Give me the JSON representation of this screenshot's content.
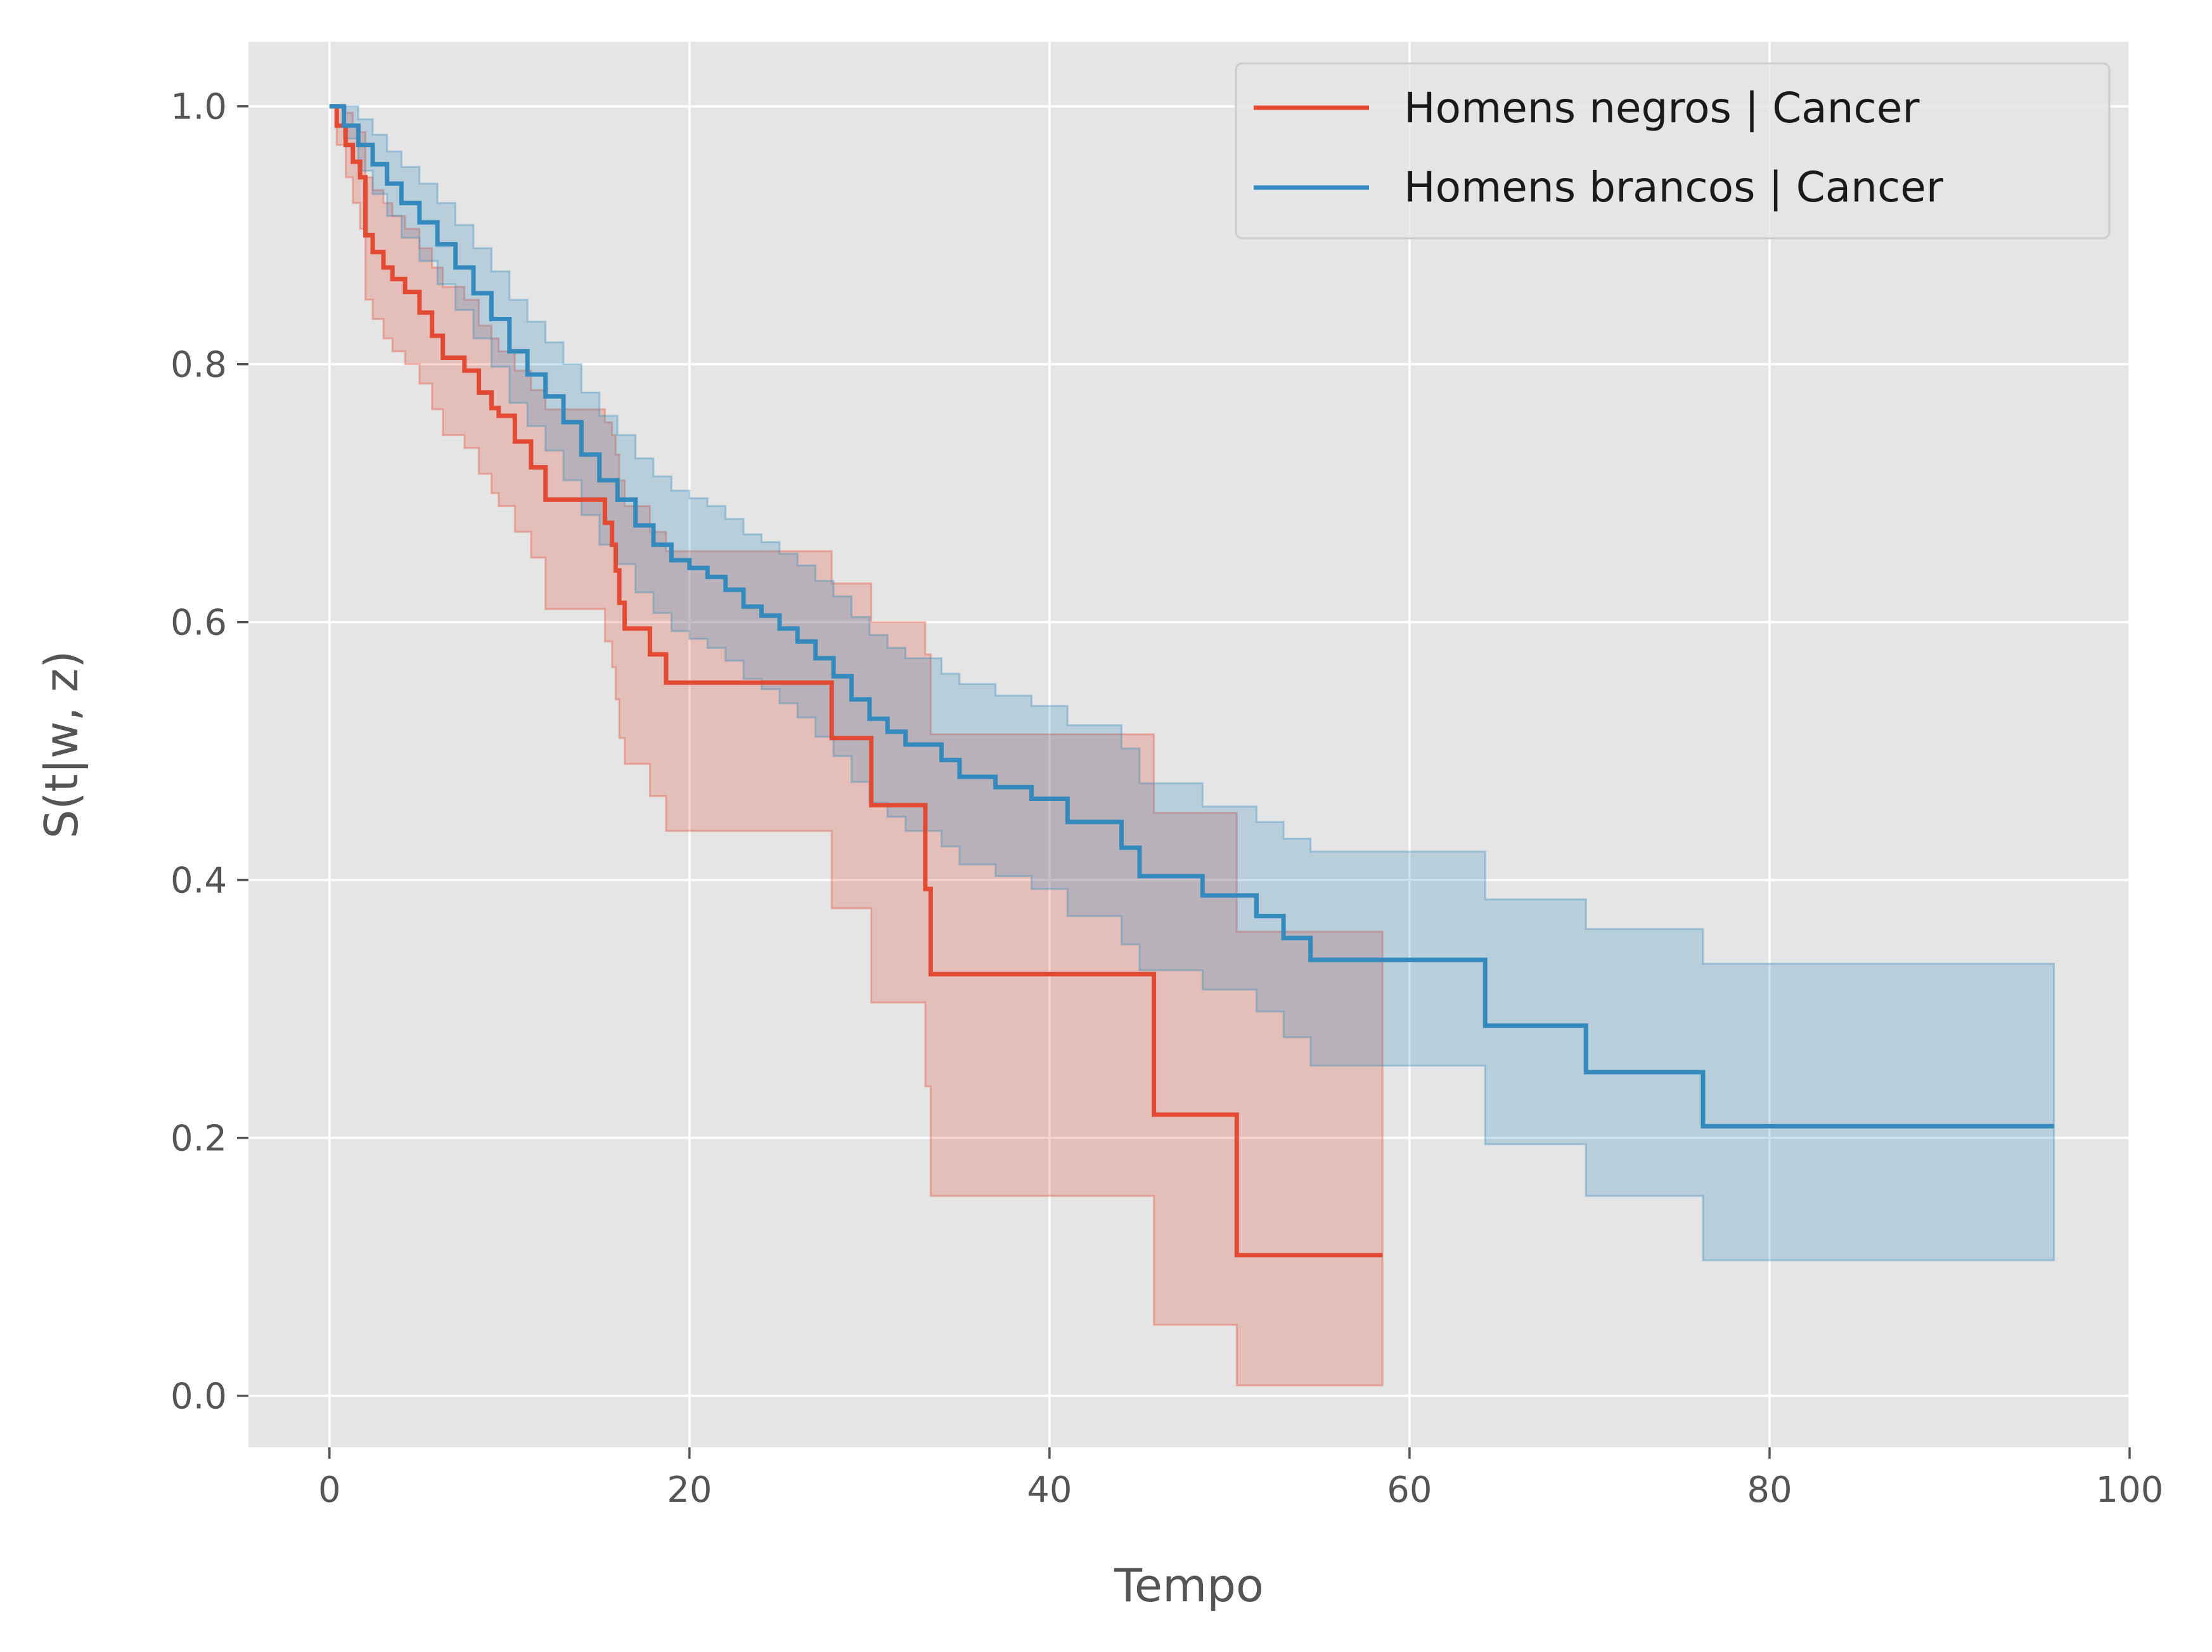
{
  "chart_data": {
    "type": "line",
    "step": true,
    "title": "",
    "xlabel": "Tempo",
    "ylabel": "S(t|w, z)",
    "xlim": [
      -4.5,
      100
    ],
    "ylim": [
      -0.04,
      1.05
    ],
    "xticks": [
      0,
      20,
      40,
      60,
      80,
      100
    ],
    "xtick_labels": [
      "0",
      "20",
      "40",
      "60",
      "80",
      "100"
    ],
    "yticks": [
      0.0,
      0.2,
      0.4,
      0.6,
      0.8,
      1.0
    ],
    "ytick_labels": [
      "0.0",
      "0.2",
      "0.4",
      "0.6",
      "0.8",
      "1.0"
    ],
    "grid": true,
    "legend_position": "top-right",
    "series": [
      {
        "name": "Homens negros | Cancer",
        "color": "#E24A33",
        "x": [
          0,
          0.4,
          0.9,
          1.3,
          1.7,
          2.0,
          2.4,
          3.0,
          3.5,
          4.2,
          5.0,
          5.7,
          6.3,
          7.5,
          8.3,
          9.0,
          9.4,
          10.3,
          11.2,
          12.0,
          15.3,
          15.7,
          15.9,
          16.1,
          16.4,
          17.8,
          18.7,
          27.9,
          30.1,
          33.1,
          33.4,
          45.8,
          50.4,
          58.5
        ],
        "y": [
          1.0,
          0.985,
          0.97,
          0.957,
          0.945,
          0.9,
          0.887,
          0.875,
          0.866,
          0.856,
          0.84,
          0.822,
          0.805,
          0.795,
          0.778,
          0.766,
          0.76,
          0.74,
          0.72,
          0.695,
          0.677,
          0.66,
          0.64,
          0.615,
          0.595,
          0.575,
          0.553,
          0.51,
          0.458,
          0.393,
          0.327,
          0.218,
          0.109,
          0.109
        ],
        "ci_upper": [
          1.0,
          1.0,
          0.995,
          0.985,
          0.98,
          0.945,
          0.935,
          0.925,
          0.915,
          0.905,
          0.89,
          0.875,
          0.86,
          0.85,
          0.83,
          0.82,
          0.81,
          0.795,
          0.78,
          0.765,
          0.755,
          0.745,
          0.73,
          0.71,
          0.69,
          0.67,
          0.655,
          0.63,
          0.6,
          0.575,
          0.513,
          0.452,
          0.36,
          0.36
        ],
        "ci_lower": [
          1.0,
          0.97,
          0.945,
          0.925,
          0.905,
          0.85,
          0.835,
          0.82,
          0.81,
          0.8,
          0.785,
          0.765,
          0.745,
          0.735,
          0.715,
          0.7,
          0.69,
          0.67,
          0.65,
          0.61,
          0.585,
          0.565,
          0.54,
          0.51,
          0.49,
          0.465,
          0.438,
          0.378,
          0.305,
          0.24,
          0.155,
          0.055,
          0.008,
          0.008
        ]
      },
      {
        "name": "Homens brancos | Cancer",
        "color": "#348ABD",
        "x": [
          0,
          0.8,
          1.6,
          2.4,
          3.2,
          4.0,
          5.0,
          6.0,
          7.0,
          8.0,
          9.0,
          10.0,
          11.0,
          12.0,
          13.0,
          14.0,
          15.0,
          16.0,
          17.0,
          18.0,
          19.0,
          20.0,
          21.0,
          22.0,
          23.0,
          24.0,
          25.0,
          26.0,
          27.0,
          28.0,
          29.0,
          30.0,
          31.0,
          32.0,
          34.0,
          35.0,
          37.0,
          39.0,
          41.0,
          44.0,
          45.0,
          48.5,
          51.5,
          53.0,
          54.5,
          64.2,
          69.8,
          76.3,
          95.8
        ],
        "y": [
          1.0,
          0.985,
          0.97,
          0.955,
          0.94,
          0.925,
          0.91,
          0.893,
          0.875,
          0.855,
          0.835,
          0.81,
          0.792,
          0.775,
          0.755,
          0.73,
          0.71,
          0.695,
          0.675,
          0.66,
          0.648,
          0.642,
          0.635,
          0.625,
          0.612,
          0.605,
          0.595,
          0.585,
          0.572,
          0.558,
          0.54,
          0.525,
          0.515,
          0.505,
          0.493,
          0.48,
          0.472,
          0.463,
          0.445,
          0.425,
          0.403,
          0.388,
          0.372,
          0.355,
          0.338,
          0.287,
          0.251,
          0.209,
          0.209
        ],
        "ci_upper": [
          1.0,
          1.0,
          0.99,
          0.978,
          0.965,
          0.953,
          0.94,
          0.925,
          0.908,
          0.89,
          0.872,
          0.85,
          0.833,
          0.817,
          0.8,
          0.778,
          0.76,
          0.745,
          0.727,
          0.713,
          0.702,
          0.696,
          0.69,
          0.68,
          0.668,
          0.662,
          0.653,
          0.644,
          0.632,
          0.62,
          0.604,
          0.59,
          0.58,
          0.572,
          0.56,
          0.552,
          0.543,
          0.535,
          0.52,
          0.502,
          0.475,
          0.457,
          0.445,
          0.432,
          0.422,
          0.385,
          0.362,
          0.335,
          0.335
        ],
        "ci_lower": [
          1.0,
          0.975,
          0.95,
          0.932,
          0.915,
          0.898,
          0.88,
          0.862,
          0.842,
          0.82,
          0.798,
          0.77,
          0.752,
          0.733,
          0.71,
          0.683,
          0.66,
          0.645,
          0.623,
          0.607,
          0.593,
          0.587,
          0.58,
          0.57,
          0.556,
          0.548,
          0.537,
          0.526,
          0.511,
          0.496,
          0.476,
          0.46,
          0.449,
          0.438,
          0.426,
          0.412,
          0.403,
          0.393,
          0.372,
          0.35,
          0.33,
          0.315,
          0.298,
          0.278,
          0.256,
          0.195,
          0.155,
          0.105,
          0.105
        ]
      }
    ]
  },
  "colors": {
    "plot_background": "#E5E5E5",
    "grid": "#FFFFFF",
    "tick_text": "#555555"
  }
}
